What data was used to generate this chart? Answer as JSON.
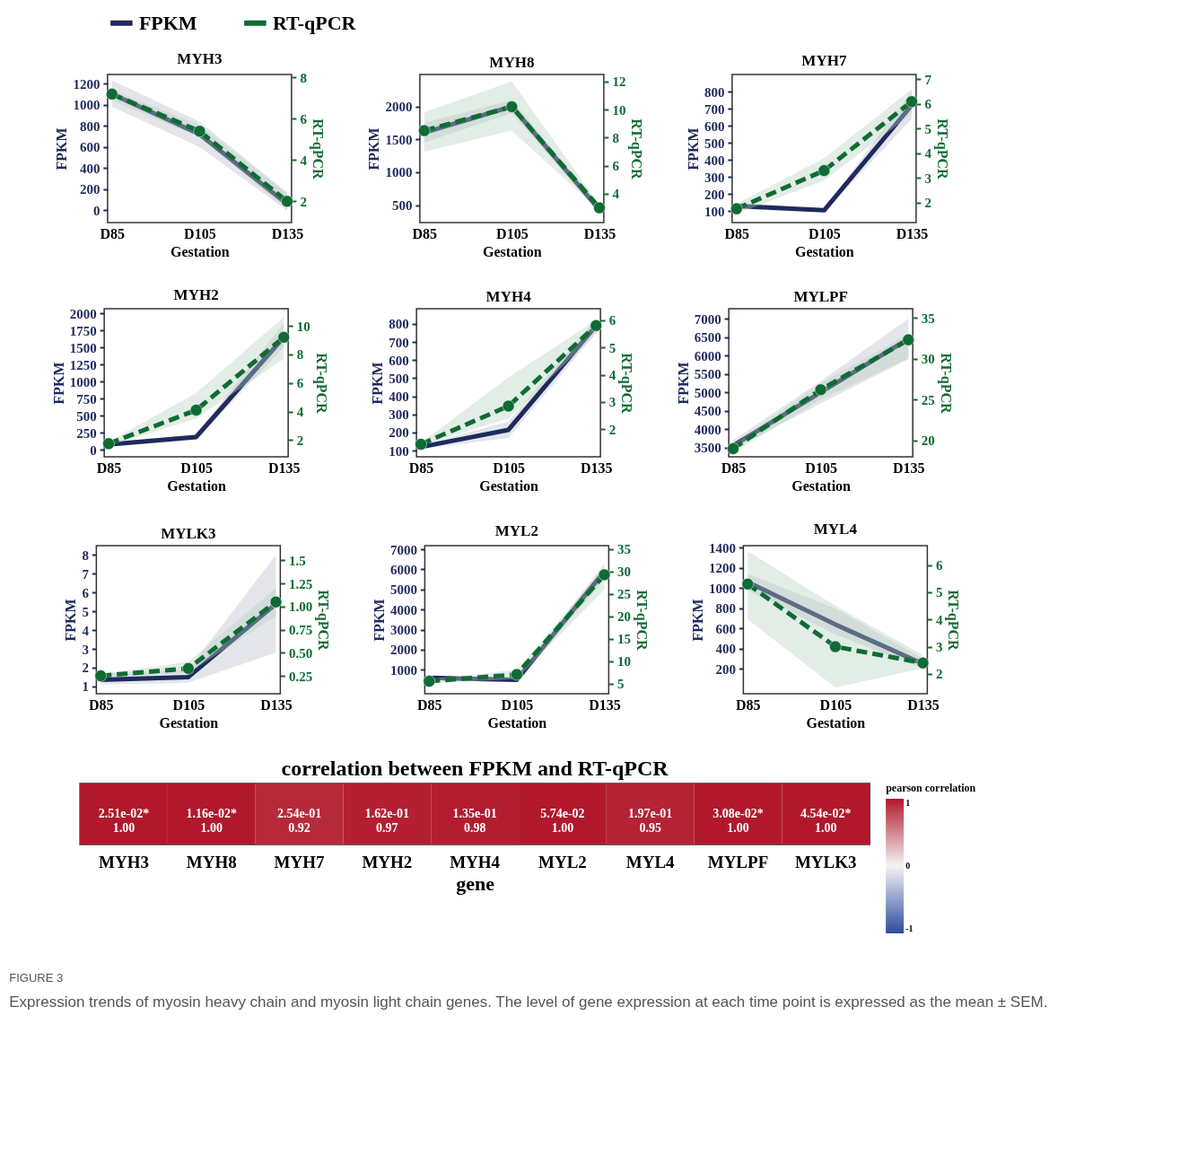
{
  "chart_data": [
    {
      "type": "line",
      "title": "MYH3",
      "xlabel": "Gestation",
      "ylabel": "FPKM",
      "y2label": "RT-qPCR",
      "categories": [
        "D85",
        "D105",
        "D135"
      ],
      "ylim": [
        -115,
        1285
      ],
      "yticks": [
        0,
        200,
        400,
        600,
        800,
        1000,
        1200
      ],
      "y2lim": [
        0.97,
        8.15
      ],
      "y2ticks": [
        2,
        4,
        6,
        8
      ],
      "grid": false,
      "legend": "top",
      "series": [
        {
          "name": "FPKM",
          "color": "#1f2a5c",
          "line_style": "solid",
          "marker": "none",
          "values": [
            1100,
            720,
            60
          ],
          "lower": [
            980,
            600,
            0
          ],
          "upper": [
            1230,
            840,
            170
          ]
        },
        {
          "name": "RT-qPCR",
          "color": "#0f6b33",
          "line_style": "dashed",
          "marker": "circle",
          "axis": "y2",
          "values": [
            7.2,
            5.4,
            2.0
          ],
          "lower": [
            6.9,
            5.1,
            1.6
          ],
          "upper": [
            7.4,
            5.7,
            2.4
          ]
        }
      ]
    },
    {
      "type": "line",
      "title": "MYH8",
      "xlabel": "Gestation",
      "ylabel": "FPKM",
      "y2label": "RT-qPCR",
      "categories": [
        "D85",
        "D105",
        "D135"
      ],
      "ylim": [
        235,
        2485
      ],
      "yticks": [
        500,
        1000,
        1500,
        2000
      ],
      "y2lim": [
        1.95,
        12.5
      ],
      "y2ticks": [
        4,
        6,
        8,
        10,
        12
      ],
      "grid": false,
      "series": [
        {
          "color": "#1f2a5c",
          "line_style": "solid",
          "marker": "none",
          "values": [
            1600,
            2000,
            430
          ],
          "lower": [
            1450,
            1900,
            380
          ],
          "upper": [
            1750,
            2100,
            480
          ]
        },
        {
          "color": "#0f6b33",
          "line_style": "dashed",
          "marker": "circle",
          "axis": "y2",
          "values": [
            8.5,
            10.2,
            3.0
          ],
          "lower": [
            7.0,
            8.5,
            2.8
          ],
          "upper": [
            9.8,
            12.0,
            3.2
          ]
        }
      ]
    },
    {
      "type": "line",
      "title": "MYH7",
      "xlabel": "Gestation",
      "ylabel": "FPKM",
      "y2label": "RT-qPCR",
      "categories": [
        "D85",
        "D105",
        "D135"
      ],
      "ylim": [
        33,
        900
      ],
      "yticks": [
        100,
        200,
        300,
        400,
        500,
        600,
        700,
        800
      ],
      "y2lim": [
        1.19,
        7.2
      ],
      "y2ticks": [
        2,
        3,
        4,
        5,
        6,
        7
      ],
      "grid": false,
      "series": [
        {
          "color": "#1f2a5c",
          "line_style": "solid",
          "marker": "none",
          "values": [
            130,
            105,
            720
          ],
          "lower": [
            110,
            95,
            640
          ],
          "upper": [
            150,
            115,
            800
          ]
        },
        {
          "color": "#0f6b33",
          "line_style": "dashed",
          "marker": "circle",
          "axis": "y2",
          "values": [
            1.75,
            3.3,
            6.1
          ],
          "lower": [
            1.55,
            2.9,
            5.6
          ],
          "upper": [
            1.95,
            3.8,
            6.6
          ]
        }
      ]
    },
    {
      "type": "line",
      "title": "MYH2",
      "xlabel": "Gestation",
      "ylabel": "FPKM",
      "y2label": "RT-qPCR",
      "categories": [
        "D85",
        "D105",
        "D135"
      ],
      "ylim": [
        -100,
        2067
      ],
      "yticks": [
        0,
        250,
        500,
        750,
        1000,
        1250,
        1500,
        1750,
        2000
      ],
      "y2lim": [
        0.83,
        11.2
      ],
      "y2ticks": [
        2,
        4,
        6,
        8,
        10
      ],
      "grid": false,
      "series": [
        {
          "color": "#1f2a5c",
          "line_style": "solid",
          "marker": "none",
          "values": [
            80,
            190,
            1650
          ],
          "lower": [
            50,
            150,
            1500
          ],
          "upper": [
            110,
            230,
            1850
          ]
        },
        {
          "color": "#0f6b33",
          "line_style": "dashed",
          "marker": "circle",
          "axis": "y2",
          "values": [
            1.75,
            4.1,
            9.2
          ],
          "lower": [
            1.6,
            3.5,
            7.7
          ],
          "upper": [
            1.9,
            5.3,
            10.6
          ]
        }
      ]
    },
    {
      "type": "line",
      "title": "MYH4",
      "xlabel": "Gestation",
      "ylabel": "FPKM",
      "y2label": "RT-qPCR",
      "categories": [
        "D85",
        "D105",
        "D135"
      ],
      "ylim": [
        66,
        884
      ],
      "yticks": [
        100,
        200,
        300,
        400,
        500,
        600,
        700,
        800
      ],
      "y2lim": [
        0.99,
        6.42
      ],
      "y2ticks": [
        2,
        3,
        4,
        5,
        6
      ],
      "grid": false,
      "series": [
        {
          "color": "#1f2a5c",
          "line_style": "solid",
          "marker": "none",
          "values": [
            120,
            215,
            790
          ],
          "lower": [
            110,
            170,
            750
          ],
          "upper": [
            130,
            260,
            830
          ]
        },
        {
          "color": "#0f6b33",
          "line_style": "dashed",
          "marker": "circle",
          "axis": "y2",
          "values": [
            1.45,
            2.85,
            5.8
          ],
          "lower": [
            1.4,
            2.4,
            5.5
          ],
          "upper": [
            1.5,
            3.9,
            6.0
          ]
        }
      ]
    },
    {
      "type": "line",
      "title": "MYLPF",
      "xlabel": "Gestation",
      "ylabel": "FPKM",
      "y2label": "RT-qPCR",
      "categories": [
        "D85",
        "D105",
        "D135"
      ],
      "ylim": [
        3250,
        7270
      ],
      "yticks": [
        3500,
        4000,
        4500,
        5000,
        5500,
        6000,
        6500,
        7000
      ],
      "y2lim": [
        18.0,
        36.1
      ],
      "y2ticks": [
        20,
        25,
        30,
        35
      ],
      "grid": false,
      "series": [
        {
          "color": "#1f2a5c",
          "line_style": "solid",
          "marker": "none",
          "values": [
            3550,
            5000,
            6450
          ],
          "lower": [
            3450,
            4700,
            5900
          ],
          "upper": [
            3700,
            5300,
            7000
          ]
        },
        {
          "color": "#0f6b33",
          "line_style": "dashed",
          "marker": "circle",
          "axis": "y2",
          "values": [
            19,
            26.2,
            32.3
          ],
          "lower": [
            18.5,
            25,
            30
          ],
          "upper": [
            19.5,
            27,
            33
          ]
        }
      ]
    },
    {
      "type": "line",
      "title": "MYLK3",
      "xlabel": "Gestation",
      "ylabel": "FPKM",
      "y2label": "RT-qPCR",
      "categories": [
        "D85",
        "D105",
        "D135"
      ],
      "ylim": [
        0.61,
        8.5
      ],
      "yticks": [
        1,
        2,
        3,
        4,
        5,
        6,
        7,
        8
      ],
      "y2lim": [
        0.056,
        1.66
      ],
      "y2ticks": [
        0.25,
        {
          "value": 0.5,
          "label": "0.50"
        },
        0.75,
        {
          "value": 1,
          "label": "1.00"
        },
        1.25,
        1.5
      ],
      "grid": false,
      "series": [
        {
          "color": "#1f2a5c",
          "line_style": "solid",
          "marker": "none",
          "values": [
            1.35,
            1.5,
            5.4
          ],
          "lower": [
            1.1,
            1.2,
            2.8
          ],
          "upper": [
            1.7,
            1.9,
            8.0
          ]
        },
        {
          "color": "#0f6b33",
          "line_style": "dashed",
          "marker": "circle",
          "axis": "y2",
          "values": [
            0.25,
            0.33,
            1.05
          ],
          "lower": [
            0.23,
            0.28,
            0.9
          ],
          "upper": [
            0.27,
            0.4,
            1.2
          ]
        }
      ]
    },
    {
      "type": "line",
      "title": "MYL2",
      "xlabel": "Gestation",
      "ylabel": "FPKM",
      "y2label": "RT-qPCR",
      "categories": [
        "D85",
        "D105",
        "D135"
      ],
      "ylim": [
        -190,
        7180
      ],
      "yticks": [
        1000,
        2000,
        3000,
        4000,
        5000,
        6000,
        7000
      ],
      "y2lim": [
        2.7,
        35.8
      ],
      "y2ticks": [
        5,
        10,
        15,
        20,
        25,
        30,
        35
      ],
      "grid": false,
      "series": [
        {
          "color": "#1f2a5c",
          "line_style": "solid",
          "marker": "none",
          "values": [
            600,
            500,
            5900
          ],
          "lower": [
            500,
            400,
            5500
          ],
          "upper": [
            700,
            600,
            6300
          ]
        },
        {
          "color": "#0f6b33",
          "line_style": "dashed",
          "marker": "circle",
          "axis": "y2",
          "values": [
            5.5,
            7.0,
            29.3
          ],
          "lower": [
            5,
            6,
            26
          ],
          "upper": [
            6,
            8,
            31
          ]
        }
      ]
    },
    {
      "type": "line",
      "title": "MYL4",
      "xlabel": "Gestation",
      "ylabel": "FPKM",
      "y2label": "RT-qPCR",
      "categories": [
        "D85",
        "D105",
        "D135"
      ],
      "ylim": [
        -45,
        1420
      ],
      "yticks": [
        200,
        400,
        600,
        800,
        1000,
        1200,
        1400
      ],
      "y2lim": [
        1.27,
        6.71
      ],
      "y2ticks": [
        2,
        3,
        4,
        5,
        6
      ],
      "grid": false,
      "series": [
        {
          "color": "#1f2a5c",
          "line_style": "solid",
          "marker": "none",
          "values": [
            1060,
            640,
            250
          ],
          "lower": [
            980,
            540,
            200
          ],
          "upper": [
            1140,
            800,
            300
          ]
        },
        {
          "color": "#0f6b33",
          "line_style": "dashed",
          "marker": "circle",
          "axis": "y2",
          "values": [
            5.3,
            3.0,
            2.4
          ],
          "lower": [
            4.0,
            1.5,
            2.2
          ],
          "upper": [
            6.5,
            4.5,
            2.7
          ]
        }
      ]
    },
    {
      "type": "heatmap",
      "title": "correlation between FPKM and RT-qPCR",
      "xlabel": "gene",
      "clabel": "pearson correlation",
      "categories": [
        "MYH3",
        "MYH8",
        "MYH7",
        "MYH2",
        "MYH4",
        "MYL2",
        "MYL4",
        "MYLPF",
        "MYLK3"
      ],
      "y_categories": [
        null
      ],
      "cells": [
        [
          1.0,
          1.0,
          0.92,
          0.97,
          0.98,
          1.0,
          0.95,
          1.0,
          1.0
        ]
      ],
      "cell_labels": [
        [
          "2.51e-02*\n1.00",
          "1.16e-02*\n1.00",
          "2.54e-01\n0.92",
          "1.62e-01\n0.97",
          "1.35e-01\n0.98",
          "5.74e-02\n1.00",
          "1.97e-01\n0.95",
          "3.08e-02*\n1.00",
          "4.54e-02*\n1.00"
        ]
      ],
      "clim": [
        -1,
        1
      ],
      "cticks": [
        -1,
        0,
        1
      ],
      "annotations": [
        "FIGURE 3",
        "Expression trends of myosin heavy chain and myosin light chain genes. The level of gene expression at each time point is expressed as the mean ± SEM."
      ]
    }
  ]
}
